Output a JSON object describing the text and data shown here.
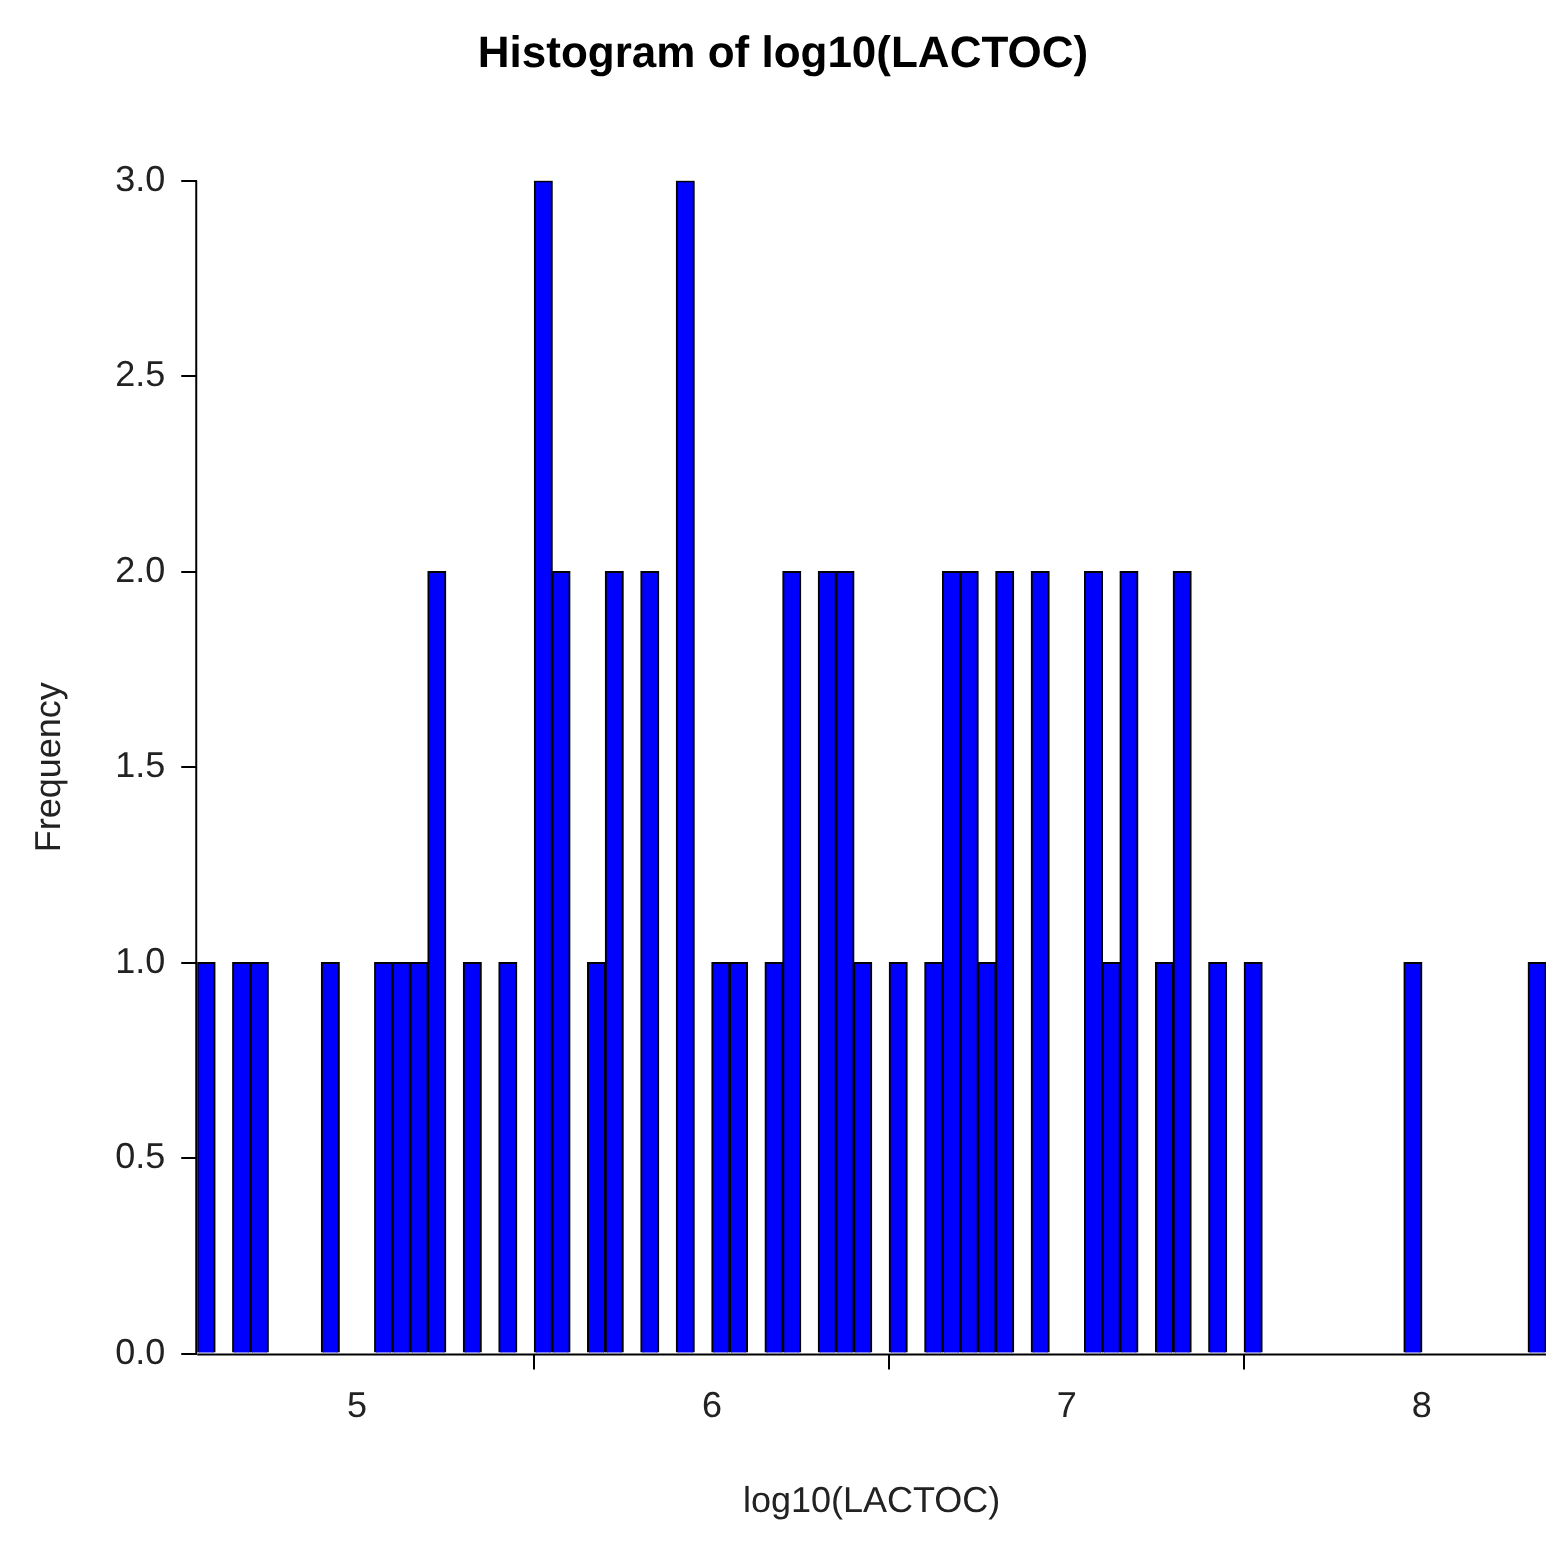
{
  "chart_data": {
    "type": "histogram",
    "title": "Histogram of log10(LACTOC)",
    "xlabel": "log10(LACTOC)",
    "ylabel": "Frequency",
    "bins": [
      4.55,
      4.6,
      4.65,
      4.7,
      4.75,
      4.8,
      4.85,
      4.9,
      4.95,
      5.0,
      5.05,
      5.1,
      5.15,
      5.2,
      5.25,
      5.3,
      5.35,
      5.4,
      5.45,
      5.5,
      5.55,
      5.6,
      5.65,
      5.7,
      5.75,
      5.8,
      5.85,
      5.9,
      5.95,
      6.0,
      6.05,
      6.1,
      6.15,
      6.2,
      6.25,
      6.3,
      6.35,
      6.4,
      6.45,
      6.5,
      6.55,
      6.6,
      6.65,
      6.7,
      6.75,
      6.8,
      6.85,
      6.9,
      6.95,
      7.0,
      7.05,
      7.1,
      7.15,
      7.2,
      7.25,
      7.3,
      7.35,
      7.4,
      7.45,
      7.5,
      7.55,
      7.6,
      7.65,
      7.7,
      7.75,
      7.8,
      7.85,
      7.9,
      7.95,
      8.0,
      8.05,
      8.1,
      8.15,
      8.2,
      8.25,
      8.3,
      8.35
    ],
    "values": [
      1,
      0,
      1,
      1,
      0,
      0,
      0,
      1,
      0,
      0,
      1,
      1,
      1,
      2,
      0,
      1,
      0,
      1,
      0,
      3,
      2,
      0,
      1,
      2,
      0,
      2,
      0,
      3,
      0,
      1,
      1,
      0,
      1,
      2,
      0,
      2,
      2,
      1,
      0,
      1,
      0,
      1,
      2,
      2,
      1,
      2,
      0,
      2,
      0,
      0,
      2,
      1,
      2,
      0,
      1,
      2,
      0,
      1,
      0,
      1,
      0,
      0,
      0,
      0,
      0,
      0,
      0,
      0,
      1,
      0,
      0,
      0,
      0,
      0,
      0,
      1
    ],
    "color": "#0000ff",
    "xlim": [
      4.55,
      8.35
    ],
    "xticks": [
      5,
      6,
      7,
      8
    ],
    "ylim": [
      0,
      3
    ],
    "yticks": [
      {
        "value": 0,
        "label": "0.0"
      },
      0.5,
      {
        "value": 1,
        "label": "1.0"
      },
      1.5,
      {
        "value": 2,
        "label": "2.0"
      },
      2.5,
      {
        "value": 3,
        "label": "3.0"
      }
    ],
    "grid": false,
    "legend": false
  }
}
